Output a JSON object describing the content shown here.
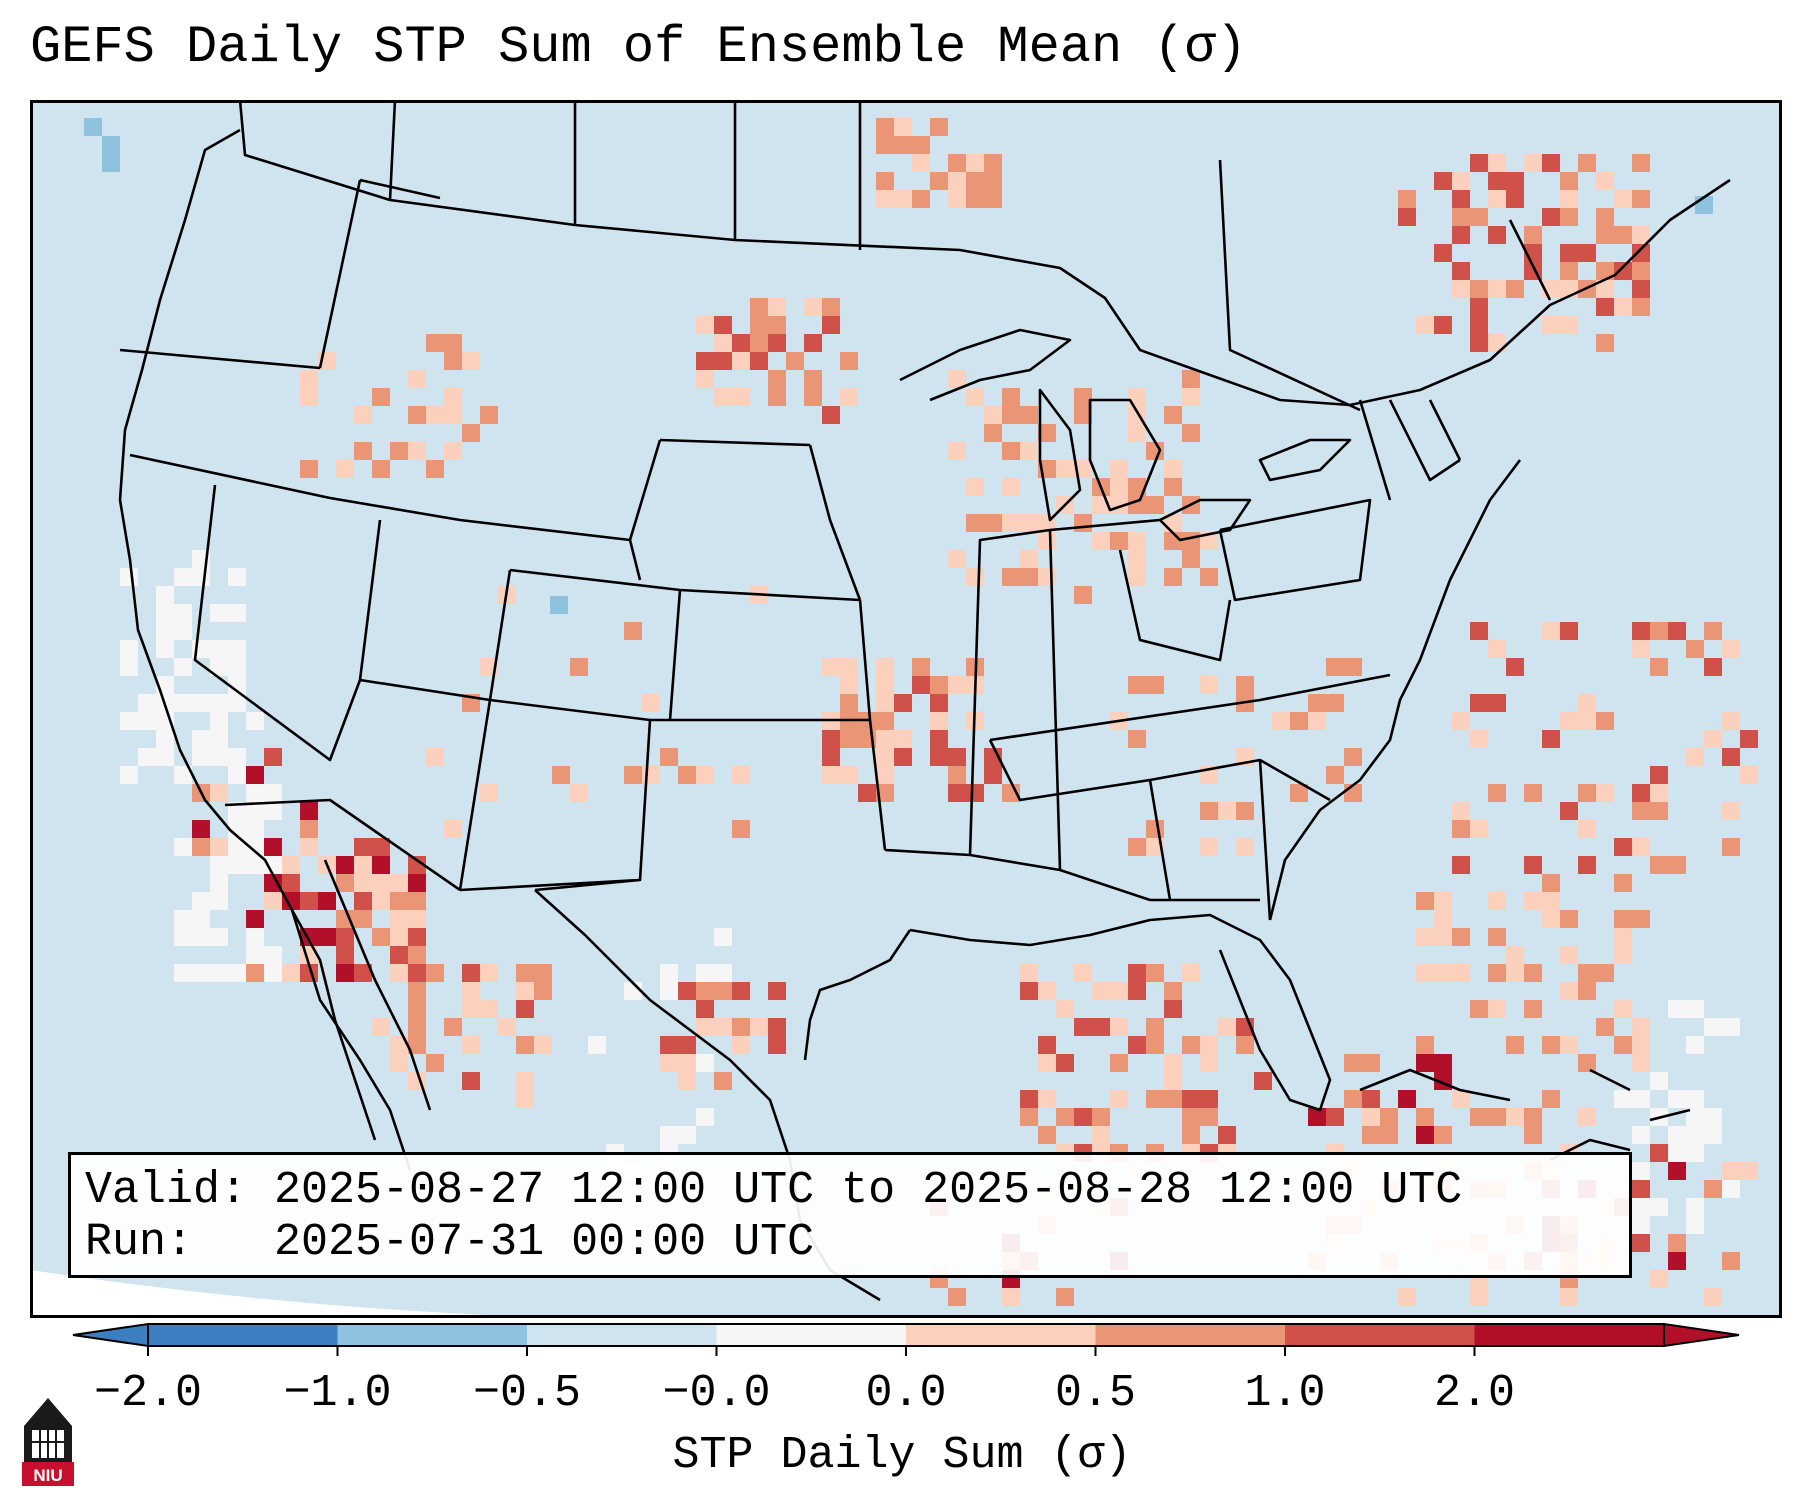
{
  "title": "GEFS Daily STP Sum of Ensemble Mean (σ)",
  "info": {
    "valid": "Valid: 2025-08-27 12:00 UTC to 2025-08-28 12:00 UTC",
    "run": "Run:   2025-07-31 00:00 UTC"
  },
  "colorbar": {
    "label": "STP Daily Sum (σ)",
    "ticks": [
      "−2.0",
      "−1.0",
      "−0.5",
      "−0.0",
      "0.0",
      "0.5",
      "1.0",
      "2.0"
    ],
    "colors": [
      "#3b7fc0",
      "#8fc2de",
      "#d0e4ef",
      "#f6f6f6",
      "#fbd1bd",
      "#eb9577",
      "#d0504a",
      "#b10f2a"
    ]
  },
  "map": {
    "background_color": "#d0e4ef",
    "border_color": "#000000"
  },
  "logo": {
    "text": "NIU",
    "color": "#c8102e"
  }
}
